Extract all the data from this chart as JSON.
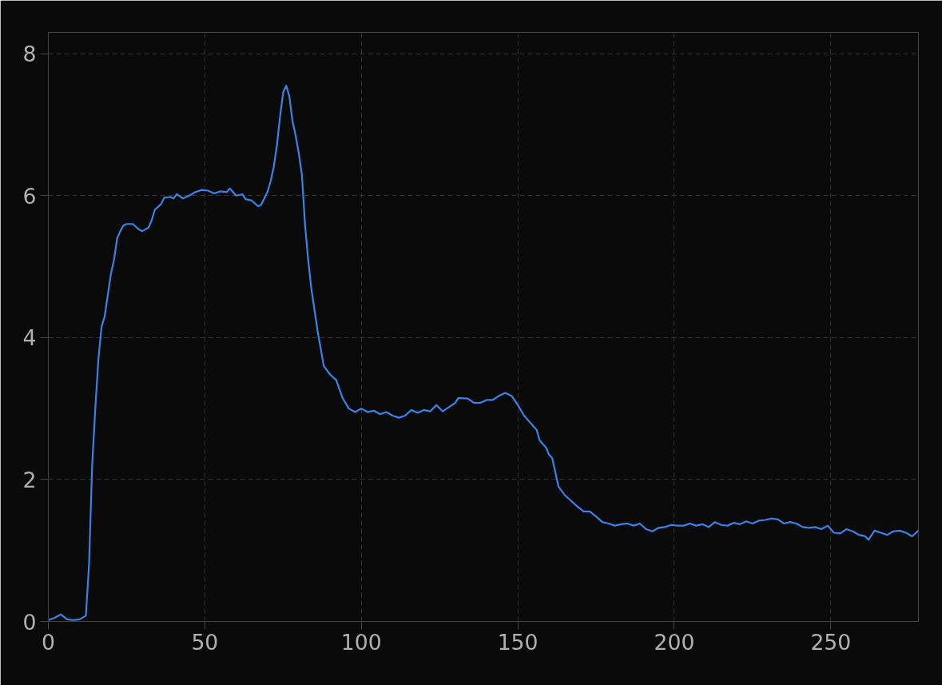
{
  "chart_data": {
    "type": "line",
    "grid": true,
    "line_style": "solid",
    "marker": "none",
    "xlim": [
      0,
      278
    ],
    "xticks": [
      0,
      50,
      100,
      150,
      200,
      250
    ],
    "ylim": [
      0,
      8.3
    ],
    "yticks": [
      0,
      2,
      4,
      6,
      8
    ],
    "series": [
      {
        "color": "#3b82e6",
        "x": [
          0,
          2,
          4,
          6,
          8,
          10,
          12,
          13,
          14,
          15,
          16,
          17,
          18,
          19,
          20,
          21,
          22,
          23,
          24,
          25,
          27,
          29,
          30,
          32,
          33,
          34,
          36,
          37,
          39,
          40,
          41,
          43,
          45,
          47,
          49,
          51,
          53,
          55,
          57,
          58,
          60,
          62,
          63,
          65,
          67,
          68,
          70,
          71,
          72,
          73,
          74,
          75,
          76,
          77,
          78,
          79,
          80,
          81,
          82,
          83,
          84,
          86,
          88,
          90,
          92,
          94,
          96,
          98,
          100,
          102,
          104,
          106,
          108,
          110,
          112,
          114,
          116,
          118,
          120,
          122,
          124,
          126,
          128,
          130,
          131,
          134,
          136,
          138,
          140,
          142,
          144,
          146,
          148,
          150,
          152,
          154,
          156,
          157,
          159,
          160,
          161,
          162,
          163,
          165,
          167,
          169,
          171,
          173,
          175,
          177,
          179,
          181,
          183,
          185,
          187,
          189,
          191,
          193,
          195,
          197,
          199,
          201,
          203,
          205,
          207,
          209,
          211,
          213,
          215,
          217,
          219,
          221,
          223,
          225,
          227,
          229,
          231,
          233,
          235,
          237,
          239,
          241,
          243,
          245,
          247,
          249,
          251,
          253,
          255,
          257,
          259,
          261,
          262,
          264,
          266,
          268,
          270,
          272,
          274,
          276,
          278
        ],
        "values": [
          0.02,
          0.05,
          0.1,
          0.03,
          0.02,
          0.03,
          0.08,
          0.8,
          2.2,
          3.0,
          3.7,
          4.15,
          4.3,
          4.6,
          4.9,
          5.1,
          5.4,
          5.5,
          5.58,
          5.6,
          5.6,
          5.52,
          5.5,
          5.55,
          5.65,
          5.8,
          5.88,
          5.97,
          5.98,
          5.96,
          6.02,
          5.96,
          6.0,
          6.05,
          6.08,
          6.07,
          6.03,
          6.06,
          6.05,
          6.1,
          6.0,
          6.02,
          5.95,
          5.93,
          5.85,
          5.87,
          6.05,
          6.2,
          6.4,
          6.7,
          7.1,
          7.45,
          7.55,
          7.4,
          7.05,
          6.85,
          6.6,
          6.3,
          5.6,
          5.1,
          4.7,
          4.1,
          3.6,
          3.48,
          3.4,
          3.15,
          3.0,
          2.95,
          3.0,
          2.95,
          2.97,
          2.92,
          2.95,
          2.9,
          2.87,
          2.9,
          2.98,
          2.94,
          2.98,
          2.96,
          3.05,
          2.96,
          3.02,
          3.08,
          3.15,
          3.14,
          3.08,
          3.08,
          3.12,
          3.12,
          3.18,
          3.22,
          3.18,
          3.05,
          2.9,
          2.8,
          2.7,
          2.55,
          2.45,
          2.35,
          2.3,
          2.1,
          1.9,
          1.78,
          1.7,
          1.62,
          1.55,
          1.55,
          1.48,
          1.4,
          1.38,
          1.35,
          1.37,
          1.38,
          1.35,
          1.38,
          1.3,
          1.27,
          1.32,
          1.33,
          1.36,
          1.35,
          1.35,
          1.38,
          1.35,
          1.37,
          1.33,
          1.4,
          1.36,
          1.35,
          1.39,
          1.37,
          1.41,
          1.38,
          1.42,
          1.43,
          1.45,
          1.44,
          1.38,
          1.4,
          1.38,
          1.33,
          1.32,
          1.33,
          1.3,
          1.35,
          1.25,
          1.24,
          1.3,
          1.27,
          1.22,
          1.2,
          1.15,
          1.28,
          1.25,
          1.22,
          1.27,
          1.28,
          1.25,
          1.2,
          1.28
        ]
      }
    ]
  }
}
